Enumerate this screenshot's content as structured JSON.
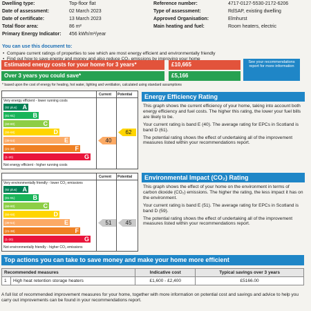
{
  "header": {
    "left": [
      {
        "label": "Dwelling type:",
        "value": "Top-floor flat"
      },
      {
        "label": "Date of assessment:",
        "value": "02 March 2023"
      },
      {
        "label": "Date of certificate:",
        "value": "13 March 2023"
      },
      {
        "label": "Total floor area:",
        "value": "86 m²"
      },
      {
        "label": "Primary Energy Indicator:",
        "value": "456 kWh/m²/year"
      }
    ],
    "right": [
      {
        "label": "Reference number:",
        "value": "4717-0127-5530-2172-6206"
      },
      {
        "label": "Type of assessment:",
        "value": "RdSAP, existing dwelling"
      },
      {
        "label": "Approved Organisation:",
        "value": "Elmhurst"
      },
      {
        "label": "Main heating and fuel:",
        "value": "Room heaters, electric"
      }
    ]
  },
  "uses": {
    "title": "You can use this document to:",
    "items": [
      "Compare current ratings of properties to see which are most energy efficient and environmentally friendly",
      "Find out how to save energy and money and also reduce CO₂ emissions by improving your home"
    ]
  },
  "costs": {
    "rows": [
      {
        "label": "Estimated energy costs for your home for 3 years*",
        "value": "£10,665"
      },
      {
        "label": "Over 3 years you could save*",
        "value": "£5,166"
      }
    ],
    "note": "See your recommendations report for more information",
    "footnote": "* based upon the cost of energy for heating, hot water, lighting and ventilation, calculated using standard assumptions"
  },
  "energy_chart": {
    "current_header": "Current",
    "potential_header": "Potential",
    "top_label": "Very energy efficient - lower running costs",
    "bottom_label": "Not energy efficient - higher running costs",
    "bands": [
      {
        "range": "(92 plus)",
        "letter": "A"
      },
      {
        "range": "(81-91)",
        "letter": "B"
      },
      {
        "range": "(69-80)",
        "letter": "C"
      },
      {
        "range": "(55-68)",
        "letter": "D"
      },
      {
        "range": "(39-54)",
        "letter": "E"
      },
      {
        "range": "(21-38)",
        "letter": "F"
      },
      {
        "range": "(1-20)",
        "letter": "G"
      }
    ],
    "current": "40",
    "potential": "62"
  },
  "energy_text": {
    "title": "Energy Efficiency Rating",
    "paragraphs": [
      "This graph shows the current efficiency of your home, taking into account both energy efficiency and fuel costs. The higher this rating, the lower your fuel bills are likely to be.",
      "Your current rating is band E (40). The average rating for EPCs in Scotland is band D (61).",
      "The potential rating shows the effect of undertaking all of the improvement measures listed within your recommendations report."
    ]
  },
  "env_chart": {
    "current_header": "Current",
    "potential_header": "Potential",
    "top_label": "Very environmentally friendly - lower CO₂ emissions",
    "bottom_label": "Not environmentally friendly - higher CO₂ emissions",
    "bands": [
      {
        "range": "(92 plus)",
        "letter": "A"
      },
      {
        "range": "(81-91)",
        "letter": "B"
      },
      {
        "range": "(69-80)",
        "letter": "C"
      },
      {
        "range": "(55-68)",
        "letter": "D"
      },
      {
        "range": "(39-54)",
        "letter": "E"
      },
      {
        "range": "(21-38)",
        "letter": "F"
      },
      {
        "range": "(1-20)",
        "letter": "G"
      }
    ],
    "current": "51",
    "potential": "45"
  },
  "env_text": {
    "title": "Environmental Impact (CO₂) Rating",
    "paragraphs": [
      "This graph shows the effect of your home on the environment in terms of carbon dioxide (CO₂) emissions. The higher the rating, the less impact it has on the environment.",
      "Your current rating is band E (51). The average rating for EPCs in Scotland is band D (59).",
      "The potential rating shows the effect of undertaking all of the improvement measures listed within your recommendations report."
    ]
  },
  "actions": {
    "title": "Top actions you can take to save money and make your home more efficient",
    "table": {
      "headers": [
        "Recommended measures",
        "Indicative cost",
        "Typical savings over 3 years"
      ],
      "rows": [
        [
          "1",
          "High heat retention storage heaters",
          "£1,600 - £2,400",
          "£5166.00"
        ]
      ]
    },
    "footer": "A full list of recommended improvement measures for your home, together with more information on potential cost and savings and advice to help you carry out improvements can be found in your recommendations report."
  }
}
